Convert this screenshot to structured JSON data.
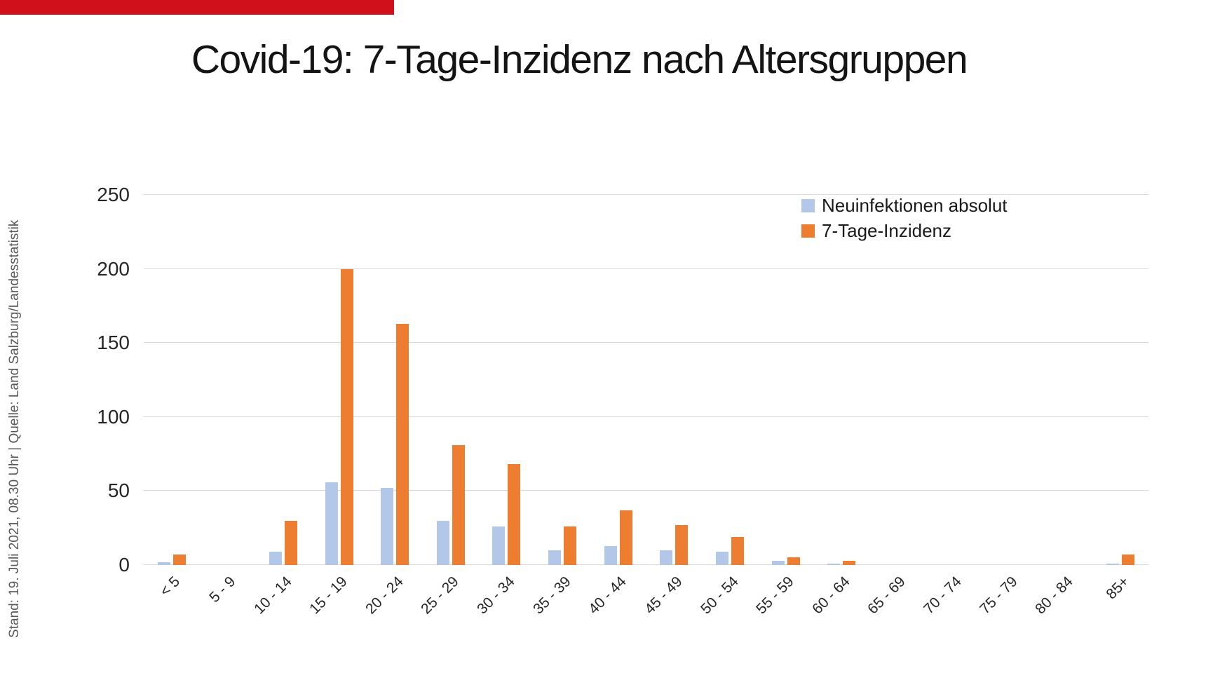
{
  "banner": {
    "color": "#d0111c"
  },
  "title": "Covid-19: 7-Tage-Inzidenz nach Altersgruppen",
  "sidebar_note": "Stand: 19. Juli 2021, 08.30 Uhr | Quelle: Land Salzburg/Landesstatistik",
  "chart_data": {
    "type": "bar",
    "title": "Covid-19: 7-Tage-Inzidenz nach Altersgruppen",
    "categories": [
      "< 5",
      "5 - 9",
      "10 - 14",
      "15 - 19",
      "20 - 24",
      "25 - 29",
      "30 - 34",
      "35 - 39",
      "40 - 44",
      "45 - 49",
      "50 - 54",
      "55 - 59",
      "60 - 64",
      "65 - 69",
      "70 - 74",
      "75 - 79",
      "80 - 84",
      "85+"
    ],
    "series": [
      {
        "name": "Neuinfektionen absolut",
        "color": "#b3c7e8",
        "values": [
          2,
          0,
          9,
          56,
          52,
          30,
          26,
          10,
          13,
          10,
          9,
          3,
          1,
          0,
          0,
          0,
          0,
          1
        ]
      },
      {
        "name": "7-Tage-Inzidenz",
        "color": "#ed7d31",
        "values": [
          7,
          0,
          30,
          200,
          163,
          81,
          68,
          26,
          37,
          27,
          19,
          5,
          3,
          0,
          0,
          0,
          0,
          7
        ]
      }
    ],
    "xlabel": "",
    "ylabel": "",
    "ylim": [
      0,
      250
    ],
    "yticks": [
      0,
      50,
      100,
      150,
      200,
      250
    ],
    "grid": true,
    "gridline_color": "#d9d9d9",
    "legend_position": "top-right"
  }
}
